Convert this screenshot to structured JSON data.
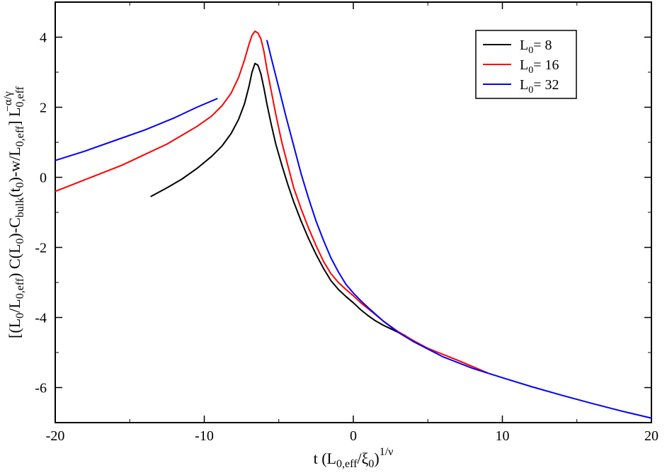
{
  "chart_data": {
    "type": "line",
    "xlim": [
      -20,
      20
    ],
    "ylim": [
      -7,
      5
    ],
    "xticks": [
      -20,
      -10,
      0,
      10,
      20
    ],
    "yticks": [
      -6,
      -4,
      -2,
      0,
      2,
      4
    ],
    "xtick_labels": [
      "-20",
      "-10",
      "0",
      "10",
      "20"
    ],
    "ytick_labels": [
      "-6",
      "-4",
      "-2",
      "0",
      "2",
      "4"
    ],
    "xlabel": {
      "t": "t (L",
      "sub1": "0,eff",
      "mid": "/ξ",
      "sub2": "0",
      "close": ")",
      "sup": "1/ν"
    },
    "ylabel": {
      "p1": "[(L",
      "s1": "0",
      "p2": "/L",
      "s2": "0,eff",
      "p3": ") C(L",
      "s3": "0",
      "p4": ")-C",
      "s4": "bulk",
      "p5": "(t",
      "s5": "0",
      "p6": ")-w/L",
      "s6": "0,eff",
      "p7": "] L",
      "s7": "0,eff",
      "sup7": "−α/γ"
    },
    "grid": false,
    "legend_position": "top-right",
    "series": [
      {
        "name": "L0= 8",
        "legend": {
          "L": "L",
          "sub": "0",
          "rest": "= 8"
        },
        "color": "#000000",
        "x": [
          -13.6,
          -12.5,
          -11.5,
          -10.5,
          -9.5,
          -8.8,
          -8.2,
          -7.7,
          -7.3,
          -7.0,
          -6.8,
          -6.6,
          -6.4,
          -6.2,
          -6.0,
          -5.8,
          -5.5,
          -5.2,
          -4.8,
          -4.4,
          -4.0,
          -3.5,
          -3.0,
          -2.5,
          -2.0,
          -1.5,
          -1.0,
          -0.5,
          0.0,
          0.5,
          1.0,
          1.5,
          2.0,
          2.5,
          3.0,
          3.5
        ],
        "y": [
          -0.55,
          -0.3,
          -0.05,
          0.25,
          0.6,
          0.9,
          1.25,
          1.65,
          2.1,
          2.6,
          3.0,
          3.25,
          3.2,
          2.95,
          2.55,
          2.1,
          1.5,
          0.95,
          0.35,
          -0.2,
          -0.7,
          -1.25,
          -1.75,
          -2.2,
          -2.6,
          -2.95,
          -3.2,
          -3.4,
          -3.58,
          -3.78,
          -3.95,
          -4.1,
          -4.22,
          -4.32,
          -4.42,
          -4.52
        ]
      },
      {
        "name": "L0= 16",
        "legend": {
          "L": "L",
          "sub": "0",
          "rest": "= 16"
        },
        "color": "#ff0000",
        "x": [
          -20.0,
          -18.5,
          -17.0,
          -15.5,
          -14.0,
          -12.5,
          -11.5,
          -10.5,
          -9.5,
          -8.8,
          -8.2,
          -7.7,
          -7.3,
          -7.0,
          -6.8,
          -6.6,
          -6.4,
          -6.2,
          -6.0,
          -5.8,
          -5.5,
          -5.2,
          -4.8,
          -4.4,
          -4.0,
          -3.5,
          -3.0,
          -2.5,
          -2.0,
          -1.5,
          -1.0,
          -0.5,
          0.0,
          0.5,
          1.0,
          2.0,
          3.0,
          4.0,
          5.0,
          6.0,
          7.0,
          8.0,
          9.0
        ],
        "y": [
          -0.4,
          -0.15,
          0.1,
          0.35,
          0.65,
          0.95,
          1.2,
          1.45,
          1.75,
          2.05,
          2.4,
          2.85,
          3.35,
          3.8,
          4.05,
          4.17,
          4.12,
          3.95,
          3.6,
          3.1,
          2.45,
          1.8,
          1.0,
          0.35,
          -0.3,
          -0.9,
          -1.45,
          -1.95,
          -2.4,
          -2.75,
          -3.0,
          -3.2,
          -3.38,
          -3.58,
          -3.75,
          -4.1,
          -4.4,
          -4.65,
          -4.88,
          -5.05,
          -5.22,
          -5.4,
          -5.58
        ]
      },
      {
        "name": "L0= 32",
        "legend": {
          "L": "L",
          "sub": "0",
          "rest": "= 32"
        },
        "color": "#0000ff",
        "x": [
          -20.0,
          -18.0,
          -16.0,
          -14.0,
          -12.0,
          -10.5,
          -9.1,
          null,
          -5.8,
          -5.5,
          -5.0,
          -4.5,
          -4.0,
          -3.5,
          -3.0,
          -2.5,
          -2.0,
          -1.5,
          -1.0,
          -0.5,
          0.0,
          0.5,
          1.0,
          2.0,
          3.0,
          4.0,
          6.0,
          8.0,
          10.0,
          12.0,
          14.0,
          16.0,
          18.0,
          20.0
        ],
        "y": [
          0.48,
          0.75,
          1.05,
          1.35,
          1.7,
          2.0,
          2.25,
          null,
          3.92,
          3.4,
          2.55,
          1.7,
          0.9,
          0.1,
          -0.6,
          -1.25,
          -1.8,
          -2.3,
          -2.7,
          -3.05,
          -3.3,
          -3.52,
          -3.72,
          -4.1,
          -4.42,
          -4.68,
          -5.12,
          -5.45,
          -5.72,
          -5.98,
          -6.22,
          -6.45,
          -6.67,
          -6.87
        ]
      }
    ]
  }
}
